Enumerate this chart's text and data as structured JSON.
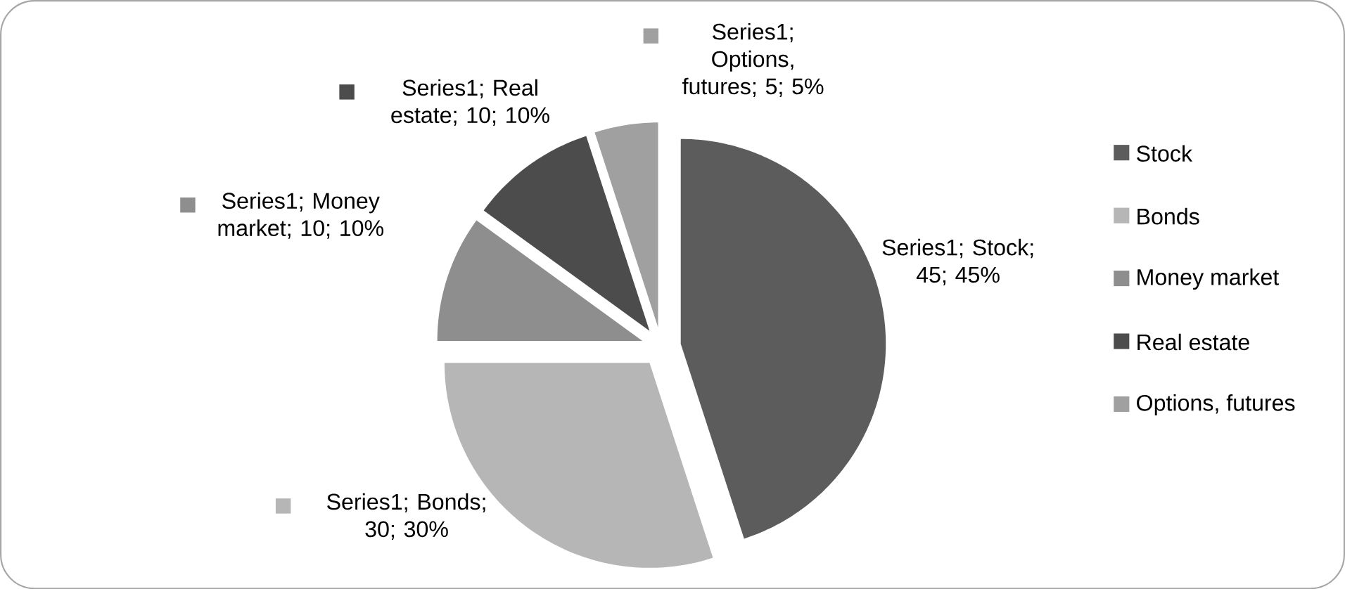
{
  "chart_data": {
    "type": "pie",
    "categories": [
      "Stock",
      "Bonds",
      "Money market",
      "Real estate",
      "Options, futures"
    ],
    "values": [
      45,
      30,
      10,
      10,
      5
    ],
    "colors": [
      "#5c5c5c",
      "#b6b6b6",
      "#8e8e8e",
      "#4c4c4c",
      "#a0a0a0"
    ],
    "value_labels": [
      "Series1; Stock; 45; 45%",
      "Series1; Bonds; 30; 30%",
      "Series1; Money market; 10; 10%",
      "Series1; Real estate; 10; 10%",
      "Series1; Options, futures; 5; 5%"
    ],
    "legend": "right"
  }
}
